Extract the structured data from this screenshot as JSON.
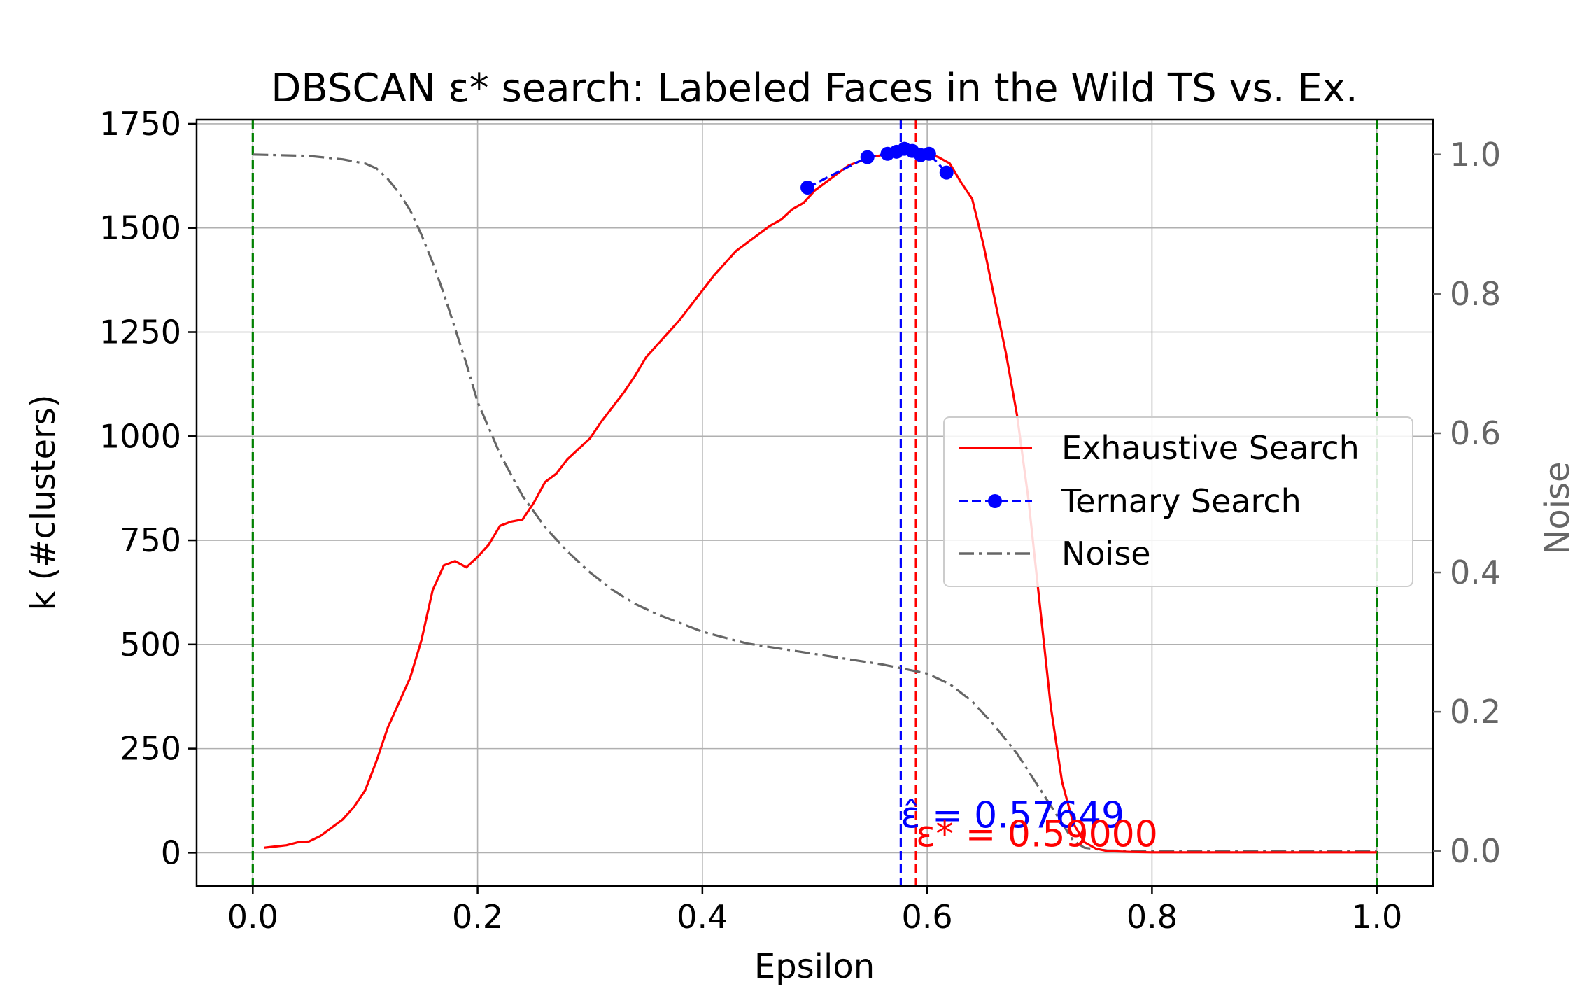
{
  "chart_data": {
    "type": "line",
    "title": "DBSCAN ε* search: Labeled Faces in the Wild TS vs. Ex.",
    "xlabel": "Epsilon",
    "ylabel": "k (#clusters)",
    "ylabel_right": "Noise",
    "xlim": [
      -0.05,
      1.05
    ],
    "ylim": [
      -80,
      1760
    ],
    "ylim_right": [
      -0.05,
      1.05
    ],
    "x_ticks": [
      0.0,
      0.2,
      0.4,
      0.6,
      0.8,
      1.0
    ],
    "x_tick_labels": [
      "0.0",
      "0.2",
      "0.4",
      "0.6",
      "0.8",
      "1.0"
    ],
    "y_ticks": [
      0,
      250,
      500,
      750,
      1000,
      1250,
      1500,
      1750
    ],
    "y_tick_labels": [
      "0",
      "250",
      "500",
      "750",
      "1000",
      "1250",
      "1500",
      "1750"
    ],
    "y_right_ticks": [
      0.0,
      0.2,
      0.4,
      0.6,
      0.8,
      1.0
    ],
    "y_right_tick_labels": [
      "0.0",
      "0.2",
      "0.4",
      "0.6",
      "0.8",
      "1.0"
    ],
    "grid": true,
    "legend_position": "center-right",
    "series": [
      {
        "name": "Exhaustive Search",
        "color": "#ff0000",
        "style": "solid",
        "axis": "left",
        "x": [
          0.01,
          0.02,
          0.03,
          0.04,
          0.05,
          0.06,
          0.07,
          0.08,
          0.09,
          0.1,
          0.11,
          0.12,
          0.13,
          0.14,
          0.15,
          0.16,
          0.17,
          0.18,
          0.19,
          0.2,
          0.21,
          0.22,
          0.23,
          0.24,
          0.25,
          0.26,
          0.27,
          0.28,
          0.29,
          0.3,
          0.31,
          0.32,
          0.33,
          0.34,
          0.35,
          0.36,
          0.37,
          0.38,
          0.39,
          0.4,
          0.41,
          0.42,
          0.43,
          0.44,
          0.45,
          0.46,
          0.47,
          0.48,
          0.49,
          0.5,
          0.51,
          0.52,
          0.53,
          0.54,
          0.55,
          0.56,
          0.57,
          0.58,
          0.59,
          0.6,
          0.61,
          0.62,
          0.63,
          0.64,
          0.65,
          0.66,
          0.67,
          0.68,
          0.69,
          0.7,
          0.71,
          0.72,
          0.73,
          0.74,
          0.75,
          0.76,
          0.78,
          0.8,
          0.85,
          0.9,
          0.95,
          1.0
        ],
        "y": [
          12,
          15,
          18,
          25,
          27,
          40,
          60,
          80,
          110,
          150,
          220,
          300,
          360,
          420,
          510,
          630,
          690,
          700,
          685,
          710,
          740,
          785,
          795,
          800,
          840,
          890,
          910,
          945,
          970,
          995,
          1035,
          1070,
          1105,
          1145,
          1190,
          1220,
          1250,
          1280,
          1315,
          1350,
          1385,
          1415,
          1445,
          1465,
          1485,
          1505,
          1520,
          1545,
          1560,
          1590,
          1610,
          1630,
          1650,
          1660,
          1670,
          1675,
          1680,
          1685,
          1685,
          1680,
          1670,
          1655,
          1610,
          1570,
          1460,
          1330,
          1200,
          1050,
          850,
          600,
          350,
          170,
          70,
          25,
          10,
          4,
          2,
          1,
          1,
          1,
          1,
          1
        ]
      },
      {
        "name": "Ternary Search",
        "color": "#0000ff",
        "style": "dashed",
        "marker": "circle",
        "axis": "left",
        "x": [
          0.4935,
          0.5468,
          0.5647,
          0.5727,
          0.5797,
          0.5867,
          0.5942,
          0.6017,
          0.6172
        ],
        "y": [
          1597,
          1670,
          1678,
          1683,
          1690,
          1685,
          1675,
          1678,
          1633
        ]
      },
      {
        "name": "Noise",
        "color": "#666666",
        "style": "dashdot",
        "axis": "right",
        "x": [
          0.0,
          0.05,
          0.08,
          0.1,
          0.11,
          0.12,
          0.13,
          0.14,
          0.15,
          0.16,
          0.17,
          0.18,
          0.19,
          0.2,
          0.22,
          0.24,
          0.26,
          0.28,
          0.3,
          0.32,
          0.34,
          0.36,
          0.4,
          0.44,
          0.48,
          0.52,
          0.56,
          0.6,
          0.62,
          0.64,
          0.66,
          0.68,
          0.7,
          0.72,
          0.73,
          0.74,
          0.76,
          0.8,
          0.9,
          1.0
        ],
        "y": [
          1.0,
          0.998,
          0.993,
          0.987,
          0.98,
          0.965,
          0.945,
          0.92,
          0.885,
          0.845,
          0.8,
          0.75,
          0.7,
          0.645,
          0.57,
          0.51,
          0.465,
          0.43,
          0.4,
          0.375,
          0.355,
          0.34,
          0.315,
          0.298,
          0.288,
          0.278,
          0.268,
          0.255,
          0.24,
          0.215,
          0.18,
          0.14,
          0.09,
          0.04,
          0.015,
          0.005,
          0.001,
          0.0,
          0.0,
          0.0
        ]
      }
    ],
    "vertical_lines": [
      {
        "x": 0.0,
        "color": "#008000",
        "style": "dashed"
      },
      {
        "x": 1.0,
        "color": "#008000",
        "style": "dashed"
      },
      {
        "x": 0.57649,
        "color": "#0000ff",
        "style": "dashed"
      },
      {
        "x": 0.59,
        "color": "#ff0000",
        "style": "dashed"
      }
    ],
    "annotations": [
      {
        "text": "ε̂ = 0.57649",
        "x": 0.57649,
        "y": 60,
        "color": "#0000ff"
      },
      {
        "text": "ε* = 0.59000",
        "x": 0.59,
        "y": 15,
        "color": "#ff0000"
      }
    ]
  }
}
